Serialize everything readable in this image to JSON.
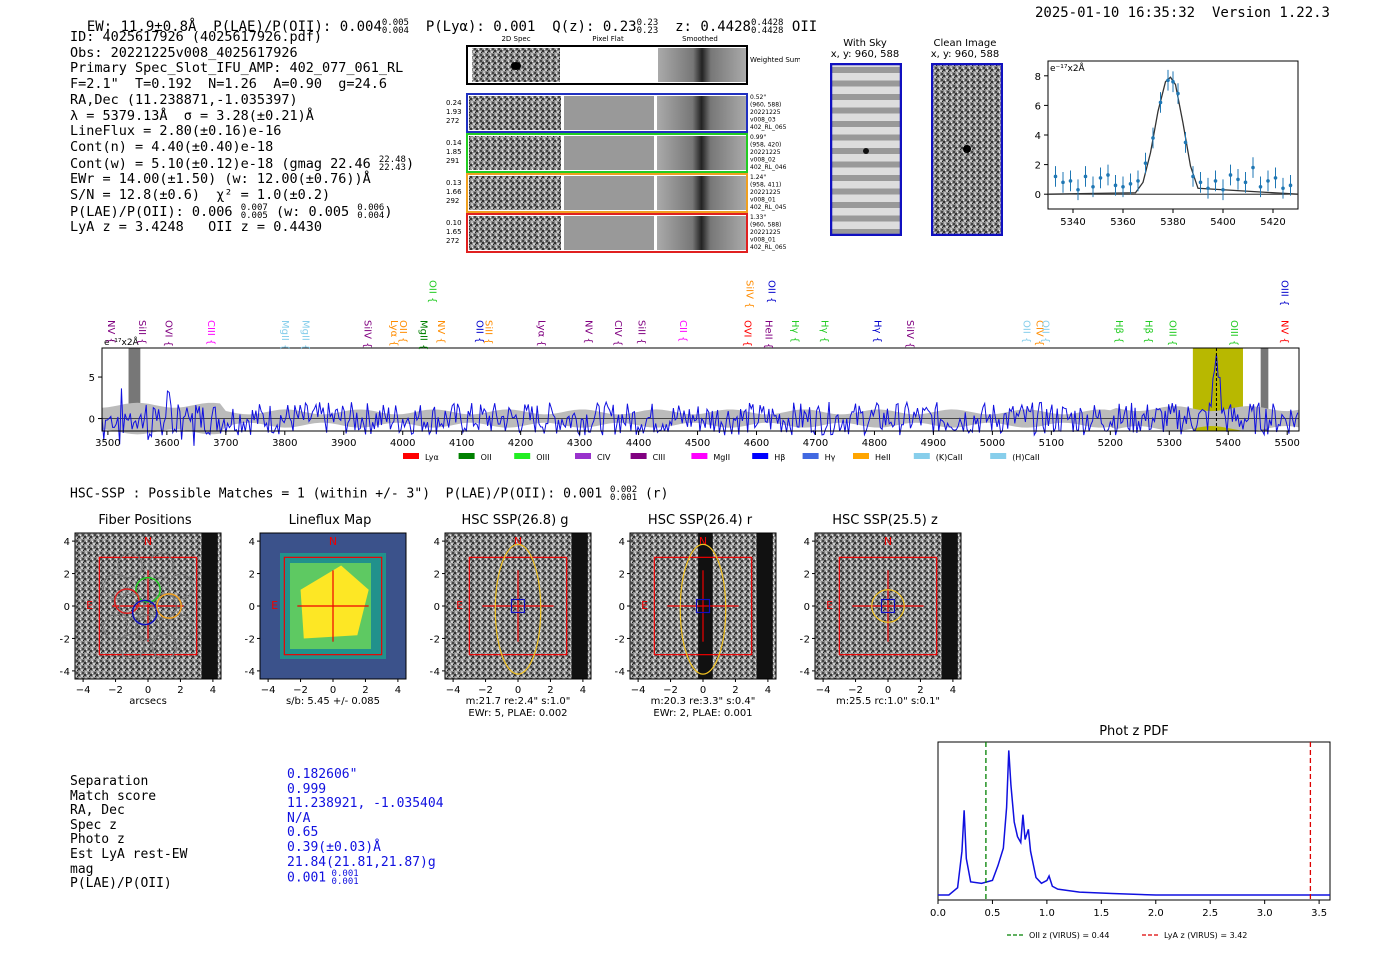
{
  "header": {
    "ew": "EW: 11.9±0.8Å",
    "plae": "P(LAE)/P(OII): 0.004",
    "plae_hi": "0.005",
    "plae_lo": "0.004",
    "plya": "P(Lyα): 0.001",
    "qz": "Q(z): 0.23",
    "qz_hi": "0.23",
    "qz_lo": "0.23",
    "z": "z: 0.4428",
    "z_hi": "0.4428",
    "z_lo": "0.4428",
    "z_line": "OII",
    "timestamp": "2025-01-10 16:35:32",
    "version": "Version 1.22.3"
  },
  "info": {
    "id": "ID: 4025617926 (4025617926.pdf)",
    "obs": "Obs: 20221225v008_4025617926",
    "primary": "Primary Spec_Slot_IFU_AMP: 402_077_061_RL",
    "fit": "F=2.1\"  T=0.192  N=1.26  A=0.90  g=24.6",
    "radec": "RA,Dec (11.238871,-1.035397)",
    "lambda": "λ = 5379.13Å  σ = 3.28(±0.21)Å",
    "lineflux": "LineFlux = 2.80(±0.16)e-16",
    "contn": "Cont(n) = 4.40(±0.40)e-18",
    "contw": "Cont(w) = 5.10(±0.12)e-18 (gmag 22.46",
    "contw_hi": "22.48",
    "contw_lo": "22.43",
    "contw_end": ")",
    "ewr": "EWr = 14.00(±1.50) (w: 12.00(±0.76))Å",
    "sn": "S/N = 12.8(±0.6)  χ² = 1.0(±0.2)",
    "plae": "P(LAE)/P(OII): 0.006",
    "plae_hi": "0.007",
    "plae_lo": "0.005",
    "plae_w": "(w: 0.005",
    "plae_w_hi": "0.006",
    "plae_w_lo": "0.004",
    "plae_w_end": ")",
    "lya": "LyA z = 3.4248   OII z = 0.4430"
  },
  "cutouts": {
    "col_2d": "2D Spec",
    "col_flat": "Pixel Flat",
    "col_smooth": "Smoothed",
    "weighted": "Weighted Sum",
    "rows": [
      {
        "l1": "0.24",
        "l2": "1.93",
        "l3": "272",
        "r1": "0.52\"",
        "r2": "(960, 588)",
        "r3": "20221225",
        "r4": "v008_03",
        "r5": "402_RL_065",
        "color": "#2030c0"
      },
      {
        "l1": "0.14",
        "l2": "1.85",
        "l3": "291",
        "r1": "0.99\"",
        "r2": "(958, 420)",
        "r3": "20221225",
        "r4": "v008_02",
        "r5": "402_RL_046",
        "color": "#22cc22"
      },
      {
        "l1": "0.13",
        "l2": "1.66",
        "l3": "292",
        "r1": "1.24\"",
        "r2": "(958, 411)",
        "r3": "20221225",
        "r4": "v008_01",
        "r5": "402_RL_045",
        "color": "#f0a020"
      },
      {
        "l1": "0.10",
        "l2": "1.65",
        "l3": "272",
        "r1": "1.33\"",
        "r2": "(960, 588)",
        "r3": "20221225",
        "r4": "v008_01",
        "r5": "402_RL_065",
        "color": "#e02020"
      }
    ]
  },
  "sky": {
    "with_sky": "With Sky",
    "with_sky_xy": "x, y: 960, 588",
    "clean": "Clean Image",
    "clean_xy": "x, y: 960, 588"
  },
  "hsc": {
    "title": "HSC-SSP : Possible Matches = 1 (within +/- 3\")  P(LAE)/P(OII): 0.001",
    "plae_hi": "0.002",
    "plae_lo": "0.001",
    "band": "(r)",
    "panels": [
      {
        "title": "Fiber Positions",
        "xlabel": "arcsecs",
        "xlabel2": ""
      },
      {
        "title": "Lineflux Map",
        "xlabel": "s/b: 5.45 +/- 0.085",
        "xlabel2": ""
      },
      {
        "title": "HSC SSP(26.8) g",
        "xlabel": "m:21.7  re:2.4\"  s:1.0\"",
        "xlabel2": "EWr: 5, PLAE: 0.002"
      },
      {
        "title": "HSC SSP(26.4) r",
        "xlabel": "m:20.3  re:3.3\"  s:0.4\"",
        "xlabel2": "EWr: 2, PLAE: 0.001"
      },
      {
        "title": "HSC SSP(25.5) z",
        "xlabel": "m:25.5 rc:1.0\"  s:0.1\"",
        "xlabel2": ""
      }
    ],
    "compass_n": "N",
    "compass_e": "E",
    "ticks": [
      "-4",
      "-2",
      "0",
      "2",
      "4"
    ]
  },
  "match": {
    "keys": [
      "Separation",
      "Match score",
      "RA, Dec",
      "Spec z",
      "Photo z",
      "Est LyA rest-EW",
      "mag",
      "P(LAE)/P(OII)"
    ],
    "vals": [
      "0.182606\"",
      "0.999",
      "11.238921, -1.035404",
      "N/A",
      "0.65",
      "0.39(±0.03)Å",
      "21.84(21.81,21.87)g",
      "0.001"
    ],
    "plae_hi": "0.001",
    "plae_lo": "0.001"
  },
  "chart_data": [
    {
      "type": "line",
      "title": "",
      "ylabel": "e⁻¹⁷x2Å",
      "xlim": [
        5330,
        5430
      ],
      "ylim": [
        -1,
        9
      ],
      "xticks": [
        5340,
        5360,
        5380,
        5400,
        5420
      ],
      "yticks": [
        0,
        2,
        4,
        6,
        8
      ],
      "series": [
        {
          "name": "data",
          "x": [
            5333,
            5336,
            5339,
            5342,
            5345,
            5348,
            5351,
            5354,
            5357,
            5360,
            5363,
            5366,
            5369,
            5372,
            5375,
            5378,
            5380,
            5382,
            5385,
            5388,
            5391,
            5394,
            5397,
            5400,
            5403,
            5406,
            5409,
            5412,
            5415,
            5418,
            5421,
            5424,
            5427
          ],
          "y": [
            1.2,
            0.8,
            0.9,
            0.3,
            1.2,
            0.5,
            1.1,
            1.3,
            0.6,
            0.5,
            0.7,
            0.9,
            2.1,
            3.8,
            6.2,
            7.7,
            7.6,
            6.8,
            3.5,
            1.2,
            0.8,
            0.4,
            0.9,
            0.3,
            1.3,
            1.0,
            0.8,
            1.8,
            0.5,
            0.9,
            1.1,
            0.4,
            0.6
          ]
        },
        {
          "name": "fit",
          "x": [
            5330,
            5365,
            5368,
            5371,
            5374,
            5377,
            5379,
            5381,
            5384,
            5387,
            5390,
            5430
          ],
          "y": [
            0,
            0.1,
            0.8,
            2.8,
            5.6,
            7.6,
            7.9,
            7.4,
            4.8,
            1.9,
            0.4,
            0
          ]
        }
      ]
    },
    {
      "type": "line",
      "title": "",
      "ylabel": "e⁻¹⁷x2Å",
      "xlim": [
        3490,
        5520
      ],
      "ylim": [
        -1.5,
        8.5
      ],
      "xticks": [
        3500,
        3600,
        3700,
        3800,
        3900,
        4000,
        4100,
        4200,
        4300,
        4400,
        4500,
        4600,
        4700,
        4800,
        4900,
        5000,
        5100,
        5200,
        5300,
        5400,
        5500
      ],
      "yticks": [
        0,
        5
      ],
      "highlight": [
        5340,
        5425
      ],
      "peak": 5380,
      "line_labels": [
        {
          "name": "NV",
          "x": 3500,
          "color": "#800080",
          "row": 2
        },
        {
          "name": "SiII",
          "x": 3553,
          "color": "#800080",
          "row": 2
        },
        {
          "name": "OVI",
          "x": 3598,
          "color": "#800080",
          "row": 2
        },
        {
          "name": "CIII",
          "x": 3670,
          "color": "#ff00ff",
          "row": 2
        },
        {
          "name": "MgII",
          "x": 3795,
          "color": "#87ceeb",
          "row": 2
        },
        {
          "name": "MgII",
          "x": 3830,
          "color": "#87ceeb",
          "row": 2
        },
        {
          "name": "SiIV",
          "x": 3935,
          "color": "#800080",
          "row": 2
        },
        {
          "name": "Lyα",
          "x": 3980,
          "color": "#ff8c00",
          "row": 2
        },
        {
          "name": "OII",
          "x": 3995,
          "color": "#ff8c00",
          "row": 2
        },
        {
          "name": "MgII",
          "x": 4030,
          "color": "#008000",
          "row": 2
        },
        {
          "name": "NV",
          "x": 4060,
          "color": "#ff8c00",
          "row": 2
        },
        {
          "name": "OII",
          "x": 4045,
          "color": "#22cc22",
          "row": 0
        },
        {
          "name": "OII",
          "x": 4125,
          "color": "#0000cc",
          "row": 2
        },
        {
          "name": "SiII",
          "x": 4140,
          "color": "#ff8c00",
          "row": 2
        },
        {
          "name": "Lyα",
          "x": 4230,
          "color": "#800080",
          "row": 2
        },
        {
          "name": "NV",
          "x": 4310,
          "color": "#800080",
          "row": 2
        },
        {
          "name": "CIV",
          "x": 4360,
          "color": "#800080",
          "row": 2
        },
        {
          "name": "SiII",
          "x": 4400,
          "color": "#800080",
          "row": 2
        },
        {
          "name": "CII",
          "x": 4470,
          "color": "#ff00ff",
          "row": 2
        },
        {
          "name": "OVI",
          "x": 4580,
          "color": "#ff0000",
          "row": 2
        },
        {
          "name": "SiIV",
          "x": 4583,
          "color": "#ff8c00",
          "row": 0
        },
        {
          "name": "OII",
          "x": 4620,
          "color": "#0000cc",
          "row": 0
        },
        {
          "name": "HeII",
          "x": 4615,
          "color": "#800080",
          "row": 2
        },
        {
          "name": "Hγ",
          "x": 4660,
          "color": "#22cc22",
          "row": 2
        },
        {
          "name": "Hγ",
          "x": 4710,
          "color": "#22cc22",
          "row": 2
        },
        {
          "name": "Hγ",
          "x": 4800,
          "color": "#0000cc",
          "row": 2
        },
        {
          "name": "SiIV",
          "x": 4855,
          "color": "#800080",
          "row": 2
        },
        {
          "name": "OII",
          "x": 5053,
          "color": "#87ceeb",
          "row": 2
        },
        {
          "name": "CIV",
          "x": 5075,
          "color": "#ff8c00",
          "row": 2
        },
        {
          "name": "OII",
          "x": 5085,
          "color": "#87ceeb",
          "row": 2
        },
        {
          "name": "Hβ",
          "x": 5210,
          "color": "#22cc22",
          "row": 2
        },
        {
          "name": "Hβ",
          "x": 5260,
          "color": "#22cc22",
          "row": 2
        },
        {
          "name": "OIII",
          "x": 5300,
          "color": "#22cc22",
          "row": 2
        },
        {
          "name": "OIII",
          "x": 5405,
          "color": "#22cc22",
          "row": 2
        },
        {
          "name": "NV",
          "x": 5490,
          "color": "#ff0000",
          "row": 2
        },
        {
          "name": "OIII",
          "x": 5490,
          "color": "#0000cc",
          "row": 0
        }
      ],
      "legend": [
        {
          "name": "Lyα",
          "color": "#ff0000"
        },
        {
          "name": "OII",
          "color": "#008000"
        },
        {
          "name": "OIII",
          "color": "#22ee22"
        },
        {
          "name": "CIV",
          "color": "#9932cc"
        },
        {
          "name": "CIII",
          "color": "#800080"
        },
        {
          "name": "MgII",
          "color": "#ff00ff"
        },
        {
          "name": "Hβ",
          "color": "#0000ff"
        },
        {
          "name": "Hγ",
          "color": "#4169e1"
        },
        {
          "name": "HeII",
          "color": "#ffa500"
        },
        {
          "name": "(K)CaII",
          "color": "#87ceeb"
        },
        {
          "name": "(H)CaII",
          "color": "#87ceeb"
        }
      ]
    },
    {
      "type": "line",
      "title": "Phot z PDF",
      "xlim": [
        0,
        3.6
      ],
      "ylim": [
        0,
        1
      ],
      "xticks": [
        0.0,
        0.5,
        1.0,
        1.5,
        2.0,
        2.5,
        3.0,
        3.5
      ],
      "xticklabels": [
        "0.0",
        "0.5",
        "1.0",
        "1.5",
        "2.0",
        "2.5",
        "3.0",
        "3.5"
      ],
      "series": [
        {
          "name": "pdf",
          "x": [
            0,
            0.1,
            0.18,
            0.22,
            0.24,
            0.26,
            0.3,
            0.4,
            0.5,
            0.55,
            0.6,
            0.63,
            0.65,
            0.67,
            0.7,
            0.73,
            0.76,
            0.78,
            0.8,
            0.83,
            0.85,
            0.9,
            0.95,
            1.0,
            1.02,
            1.05,
            1.1,
            1.3,
            1.6,
            2.0,
            3.6
          ],
          "y": [
            0,
            0,
            0.05,
            0.3,
            0.58,
            0.25,
            0.09,
            0.08,
            0.1,
            0.2,
            0.32,
            0.6,
            0.99,
            0.75,
            0.5,
            0.4,
            0.36,
            0.55,
            0.38,
            0.45,
            0.3,
            0.12,
            0.08,
            0.1,
            0.13,
            0.06,
            0.04,
            0.02,
            0.01,
            0,
            0
          ]
        }
      ],
      "vlines": [
        {
          "name": "OII z (VIRUS) = 0.44",
          "x": 0.44,
          "color": "#008000"
        },
        {
          "name": "LyA z (VIRUS) = 3.42",
          "x": 3.42,
          "color": "#dd0000"
        }
      ]
    }
  ]
}
